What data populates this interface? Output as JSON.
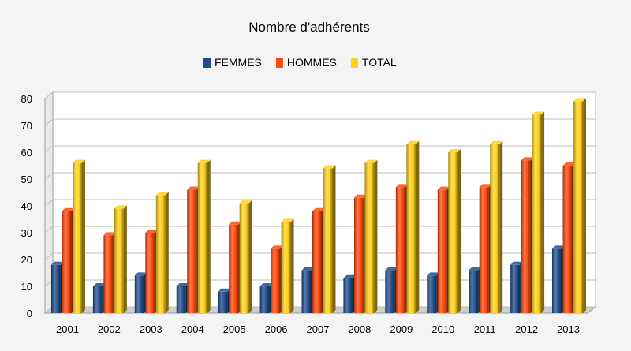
{
  "chart_data": {
    "type": "bar",
    "title": "Nombre d'adhérents",
    "xlabel": "",
    "ylabel": "",
    "categories": [
      "2001",
      "2002",
      "2003",
      "2004",
      "2005",
      "2006",
      "2007",
      "2008",
      "2009",
      "2010",
      "2011",
      "2012",
      "2013"
    ],
    "series": [
      {
        "name": "FEMMES",
        "color": "#1f4e8c",
        "values": [
          18,
          10,
          14,
          10,
          8,
          10,
          16,
          13,
          16,
          14,
          16,
          18,
          24
        ]
      },
      {
        "name": "HOMMES",
        "color": "#ff4a0d",
        "values": [
          38,
          29,
          30,
          46,
          33,
          24,
          38,
          43,
          47,
          46,
          47,
          57,
          55
        ]
      },
      {
        "name": "TOTAL",
        "color": "#ffd21a",
        "values": [
          56,
          39,
          44,
          56,
          41,
          34,
          54,
          56,
          63,
          60,
          63,
          74,
          79
        ]
      }
    ],
    "ylim": [
      0,
      80
    ],
    "yticks": [
      0,
      10,
      20,
      30,
      40,
      50,
      60,
      70,
      80
    ],
    "grid": true,
    "legend_position": "top-center",
    "bar_style": "3d-cylinder"
  }
}
